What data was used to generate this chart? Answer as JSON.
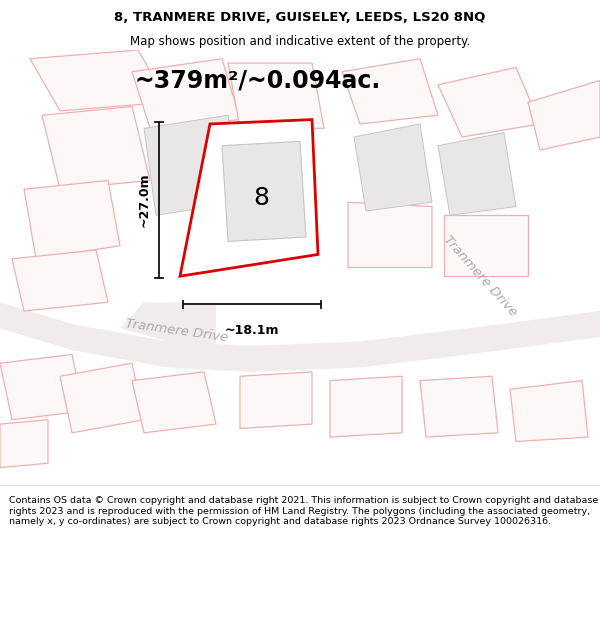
{
  "title_line1": "8, TRANMERE DRIVE, GUISELEY, LEEDS, LS20 8NQ",
  "title_line2": "Map shows position and indicative extent of the property.",
  "area_text": "~379m²/~0.094ac.",
  "dim_vertical": "~27.0m",
  "dim_horizontal": "~18.1m",
  "label_number": "8",
  "road_label_lower": "Tranmere Drive",
  "road_label_right": "Tranmere Drive",
  "bg_color": "#faf8f8",
  "plot_color": "#dd0000",
  "plot_fill": "#ffffff",
  "building_fill": "#e8e6e6",
  "building_edge": "#c8c4c4",
  "other_edge_color": "#f0b0b0",
  "other_fill": "#fdf8f8",
  "road_fill": "#f0ecec",
  "dim_color": "#111111",
  "road_label_color": "#aaaaaa",
  "footer_text": "Contains OS data © Crown copyright and database right 2021. This information is subject to Crown copyright and database rights 2023 and is reproduced with the permission of HM Land Registry. The polygons (including the associated geometry, namely x, y co-ordinates) are subject to Crown copyright and database rights 2023 Ordnance Survey 100026316.",
  "title_fontsize": 9.5,
  "subtitle_fontsize": 8.5,
  "area_fontsize": 17,
  "dim_fontsize": 9,
  "label_fontsize": 18,
  "road_fontsize": 9.5,
  "footer_fontsize": 6.8
}
